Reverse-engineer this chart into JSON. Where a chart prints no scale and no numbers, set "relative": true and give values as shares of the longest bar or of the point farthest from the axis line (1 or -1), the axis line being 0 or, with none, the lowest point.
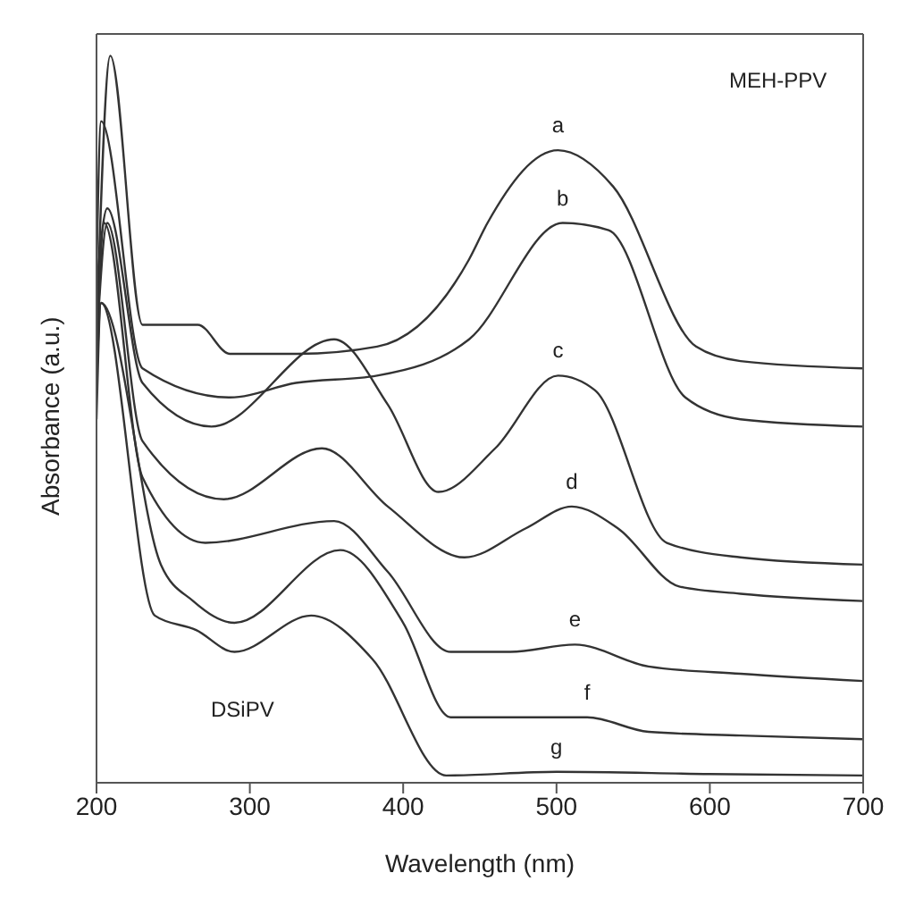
{
  "chart_data": {
    "type": "line",
    "xlabel": "Wavelength (nm)",
    "ylabel": "Absorbance (a.u.)",
    "relative": true,
    "xlim": [
      200,
      700
    ],
    "xticks": [
      200,
      300,
      400,
      500,
      600,
      700
    ],
    "marker": "none",
    "line_style": "solid",
    "series": [
      {
        "name": "a",
        "color": "#333333",
        "x": [
          200,
          209,
          230,
          266,
          287,
          331,
          383,
          443,
          455,
          501,
          537,
          591,
          620,
          700
        ],
        "values": [
          0.62,
          1.0,
          0.63,
          0.63,
          0.59,
          0.59,
          0.6,
          0.72,
          0.77,
          0.87,
          0.82,
          0.6,
          0.58,
          0.57
        ]
      },
      {
        "name": "b",
        "color": "#333333",
        "x": [
          200,
          203,
          230,
          287,
          330,
          383,
          443,
          504,
          534,
          584,
          620,
          700
        ],
        "values": [
          0.7,
          0.91,
          0.57,
          0.53,
          0.55,
          0.56,
          0.61,
          0.77,
          0.76,
          0.53,
          0.5,
          0.49
        ]
      },
      {
        "name": "c",
        "color": "#333333",
        "x": [
          200,
          207,
          230,
          275,
          355,
          390,
          423,
          460,
          501,
          525,
          572,
          620,
          700
        ],
        "values": [
          0.68,
          0.79,
          0.55,
          0.49,
          0.61,
          0.52,
          0.4,
          0.46,
          0.56,
          0.54,
          0.33,
          0.31,
          0.3
        ]
      },
      {
        "name": "d",
        "color": "#333333",
        "x": [
          200,
          207,
          230,
          283,
          347,
          390,
          440,
          480,
          510,
          540,
          580,
          620,
          700
        ],
        "values": [
          0.6,
          0.77,
          0.47,
          0.39,
          0.46,
          0.38,
          0.31,
          0.35,
          0.38,
          0.35,
          0.27,
          0.26,
          0.25
        ]
      },
      {
        "name": "e",
        "color": "#333333",
        "x": [
          200,
          205,
          230,
          271,
          355,
          390,
          431,
          470,
          512,
          560,
          620,
          700
        ],
        "values": [
          0.58,
          0.77,
          0.42,
          0.33,
          0.36,
          0.29,
          0.18,
          0.18,
          0.19,
          0.16,
          0.15,
          0.14
        ]
      },
      {
        "name": "f",
        "color": "#333333",
        "x": [
          200,
          203,
          242,
          263,
          290,
          359,
          400,
          431,
          443,
          520,
          560,
          620,
          700
        ],
        "values": [
          0.55,
          0.66,
          0.3,
          0.25,
          0.22,
          0.32,
          0.22,
          0.09,
          0.09,
          0.09,
          0.07,
          0.065,
          0.06
        ]
      },
      {
        "name": "g",
        "color": "#333333",
        "x": [
          200,
          203,
          238,
          265,
          290,
          340,
          380,
          428,
          500,
          600,
          700
        ],
        "values": [
          0.5,
          0.66,
          0.23,
          0.21,
          0.18,
          0.23,
          0.17,
          0.01,
          0.015,
          0.012,
          0.01
        ]
      }
    ],
    "annotations": [
      "MEH-PPV",
      "DSiPV"
    ]
  }
}
